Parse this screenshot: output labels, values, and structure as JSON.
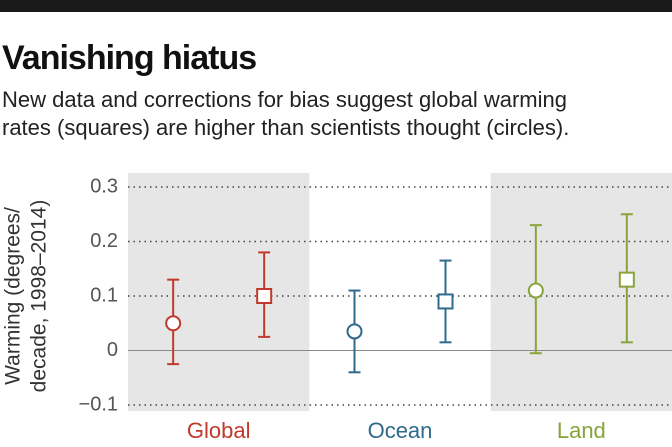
{
  "chart_data": {
    "type": "errorbar",
    "title": "Vanishing hiatus",
    "subtitle": [
      "New data and corrections for bias suggest global warming",
      "rates (squares) are higher than scientists thought (circles)."
    ],
    "y_label": [
      "Warming (degrees/",
      "decade, 1998–2014)"
    ],
    "categories": [
      "Global",
      "Ocean",
      "Land"
    ],
    "colors": [
      "#c0392b",
      "#2e6b8c",
      "#8aa33b"
    ],
    "shaded_bands": [
      true,
      false,
      true
    ],
    "series": [
      {
        "marker": "circle",
        "values": [
          0.05,
          0.035,
          0.11
        ],
        "lower": [
          -0.025,
          -0.04,
          -0.005
        ],
        "upper": [
          0.13,
          0.11,
          0.23
        ]
      },
      {
        "marker": "square",
        "values": [
          0.1,
          0.09,
          0.13
        ],
        "lower": [
          0.025,
          0.015,
          0.015
        ],
        "upper": [
          0.18,
          0.165,
          0.25
        ]
      }
    ],
    "ylim": [
      -0.1,
      0.3
    ],
    "yticks": [
      {
        "value": -0.1,
        "label": "−0.1"
      },
      0,
      0.1,
      0.2,
      0.3
    ],
    "grid": true
  }
}
